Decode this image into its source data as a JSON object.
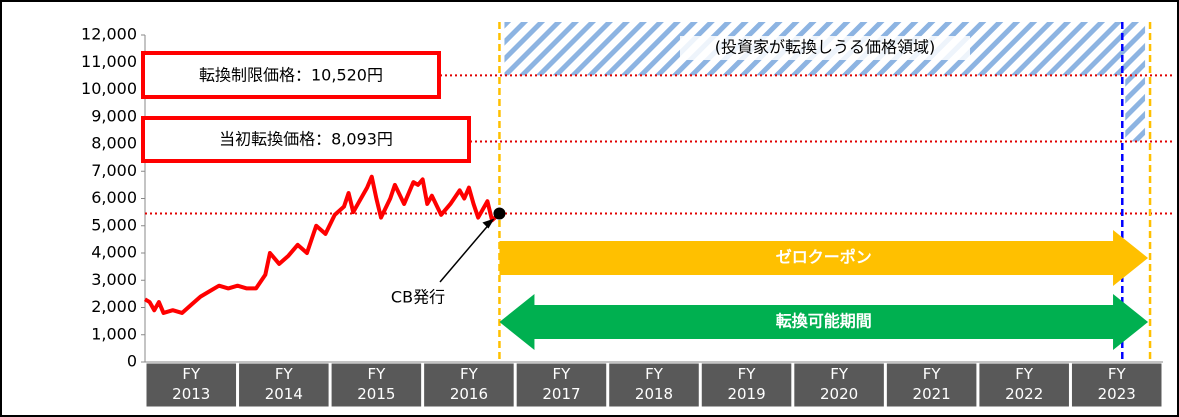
{
  "chart_data": {
    "type": "line",
    "categories": [
      "FY 2013",
      "FY 2014",
      "FY 2015",
      "FY 2016",
      "FY 2017",
      "FY 2018",
      "FY 2019",
      "FY 2020",
      "FY 2021",
      "FY 2022",
      "FY 2023"
    ],
    "xlim": [
      2013,
      2024
    ],
    "ylim": [
      0,
      12000
    ],
    "yticks": [
      0,
      {
        "value": 1000,
        "label": "1,000"
      },
      {
        "value": 2000,
        "label": "2,000"
      },
      {
        "value": 3000,
        "label": "3,000"
      },
      {
        "value": 4000,
        "label": "4,000"
      },
      {
        "value": 5000,
        "label": "5,000"
      },
      {
        "value": 6000,
        "label": "6,000"
      },
      {
        "value": 7000,
        "label": "7,000"
      },
      {
        "value": 8000,
        "label": "8,000"
      },
      {
        "value": 9000,
        "label": "9,000"
      },
      {
        "value": 10000,
        "label": "10,000"
      },
      {
        "value": 11000,
        "label": "11,000"
      },
      {
        "value": 12000,
        "label": "12,000"
      }
    ],
    "series": [
      {
        "color": "#ff0000",
        "x": [
          2013.0,
          2013.05,
          2013.1,
          2013.15,
          2013.2,
          2013.3,
          2013.4,
          2013.5,
          2013.6,
          2013.7,
          2013.8,
          2013.9,
          2014.0,
          2014.1,
          2014.2,
          2014.3,
          2014.35,
          2014.45,
          2014.55,
          2014.65,
          2014.75,
          2014.85,
          2014.95,
          2015.05,
          2015.15,
          2015.2,
          2015.25,
          2015.3,
          2015.4,
          2015.45,
          2015.5,
          2015.55,
          2015.65,
          2015.7,
          2015.8,
          2015.9,
          2015.95,
          2016.0,
          2016.05,
          2016.1,
          2016.2,
          2016.3,
          2016.4,
          2016.45,
          2016.5,
          2016.55,
          2016.6,
          2016.7,
          2016.75,
          2016.83
        ],
        "values": [
          2300,
          2200,
          1900,
          2200,
          1800,
          1900,
          1800,
          2100,
          2400,
          2600,
          2800,
          2700,
          2800,
          2700,
          2700,
          3200,
          4000,
          3600,
          3900,
          4300,
          4000,
          5000,
          4700,
          5400,
          5700,
          6200,
          5500,
          5800,
          6400,
          6800,
          6000,
          5300,
          6000,
          6500,
          5800,
          6600,
          6500,
          6700,
          5800,
          6100,
          5400,
          5800,
          6300,
          6000,
          6400,
          5800,
          5300,
          5900,
          5200,
          5450
        ]
      }
    ],
    "hlines": [
      {
        "value": 10520,
        "color": "#e00000"
      },
      {
        "value": 8093,
        "color": "#e00000"
      },
      {
        "value": 5450,
        "color": "#e00000"
      }
    ],
    "vlines": [
      {
        "value": 2016.83,
        "color": "#ffc000"
      },
      {
        "value": 2023.56,
        "color": "#0000ff"
      },
      {
        "value": 2023.86,
        "color": "#ffc000"
      }
    ],
    "issue_point": {
      "x": 2016.83,
      "y": 5450
    },
    "annotations": {
      "limit_price": "転換制限価格：10,520円",
      "initial_price": "当初転換価格：8,093円",
      "region": "(投資家が転換しうる価格領域)",
      "issue": "CB発行",
      "coupon": "ゼロクーポン",
      "period": "転換可能期間"
    }
  }
}
